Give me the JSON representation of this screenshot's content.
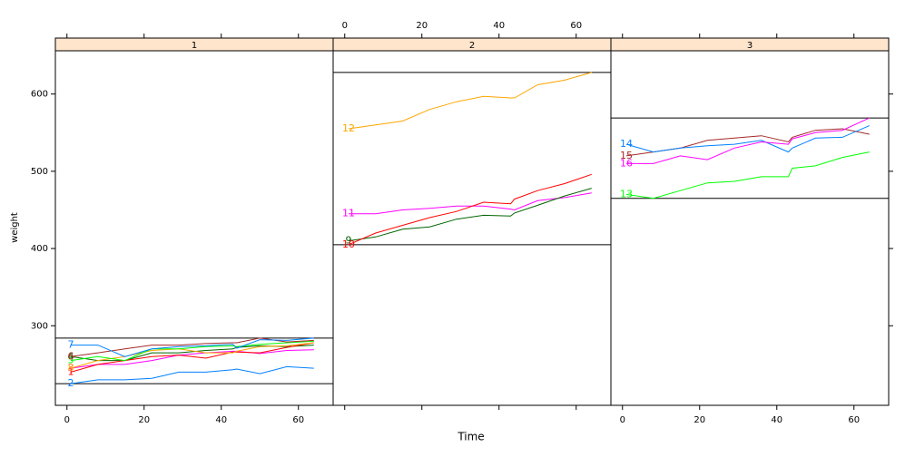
{
  "chart_data": {
    "type": "line",
    "xlabel": "Time",
    "ylabel": "weight",
    "xlim": [
      -3,
      69
    ],
    "ylim": [
      197,
      656
    ],
    "xticks": [
      0,
      20,
      40,
      60
    ],
    "yticks": [
      300,
      400,
      500,
      600
    ],
    "x": [
      1,
      8,
      15,
      22,
      29,
      36,
      43,
      44,
      50,
      57,
      64
    ],
    "panels": [
      {
        "strip": "1",
        "hlines": [
          225,
          284
        ],
        "series": [
          {
            "name": "2",
            "color": "#0080ff",
            "values": [
              225,
              230,
              230,
              232,
              240,
              240,
              243,
              244,
              238,
              247,
              245
            ]
          },
          {
            "name": "3",
            "color": "#ff00ff",
            "values": [
              245,
              250,
              250,
              255,
              262,
              265,
              267,
              267,
              264,
              268,
              269
            ]
          },
          {
            "name": "4",
            "color": "#006400",
            "values": [
              260,
              255,
              255,
              265,
              265,
              268,
              270,
              272,
              274,
              273,
              275
            ]
          },
          {
            "name": "1",
            "color": "#ff0000",
            "values": [
              240,
              250,
              255,
              260,
              262,
              258,
              266,
              266,
              265,
              272,
              278
            ]
          },
          {
            "name": "8",
            "color": "#ffa500",
            "values": [
              245,
              255,
              260,
              268,
              270,
              265,
              265,
              267,
              273,
              274,
              278
            ]
          },
          {
            "name": "5",
            "color": "#00ff00",
            "values": [
              255,
              260,
              255,
              270,
              270,
              273,
              274,
              273,
              276,
              278,
              280
            ]
          },
          {
            "name": "6",
            "color": "#a52a2a",
            "values": [
              260,
              265,
              270,
              275,
              275,
              277,
              278,
              278,
              284,
              279,
              281
            ]
          },
          {
            "name": "7",
            "color": "#0080ff",
            "values": [
              275,
              275,
              260,
              270,
              273,
              274,
              276,
              271,
              282,
              281,
              284
            ]
          }
        ]
      },
      {
        "strip": "2",
        "hlines": [
          405,
          628
        ],
        "series": [
          {
            "name": "11",
            "color": "#ff00ff",
            "values": [
              445,
              445,
              450,
              452,
              455,
              455,
              451,
              450,
              462,
              466,
              472
            ]
          },
          {
            "name": "9",
            "color": "#006400",
            "values": [
              410,
              415,
              425,
              428,
              438,
              443,
              442,
              446,
              456,
              468,
              478
            ]
          },
          {
            "name": "10",
            "color": "#ff0000",
            "values": [
              405,
              420,
              430,
              440,
              448,
              460,
              458,
              464,
              475,
              484,
              496
            ]
          },
          {
            "name": "12",
            "color": "#ffa500",
            "values": [
              555,
              560,
              565,
              580,
              590,
              597,
              595,
              595,
              612,
              618,
              628
            ]
          }
        ]
      },
      {
        "strip": "3",
        "hlines": [
          465,
          569
        ],
        "series": [
          {
            "name": "13",
            "color": "#00ff00",
            "values": [
              470,
              465,
              475,
              485,
              487,
              493,
              493,
              504,
              507,
              518,
              525
            ]
          },
          {
            "name": "15",
            "color": "#a52a2a",
            "values": [
              520,
              525,
              530,
              540,
              543,
              546,
              538,
              544,
              553,
              555,
              548
            ]
          },
          {
            "name": "14",
            "color": "#0080ff",
            "values": [
              535,
              525,
              530,
              533,
              535,
              540,
              525,
              530,
              543,
              544,
              559
            ]
          },
          {
            "name": "16",
            "color": "#ff00ff",
            "values": [
              510,
              510,
              520,
              515,
              530,
              538,
              535,
              542,
              550,
              553,
              569
            ]
          }
        ]
      }
    ]
  }
}
